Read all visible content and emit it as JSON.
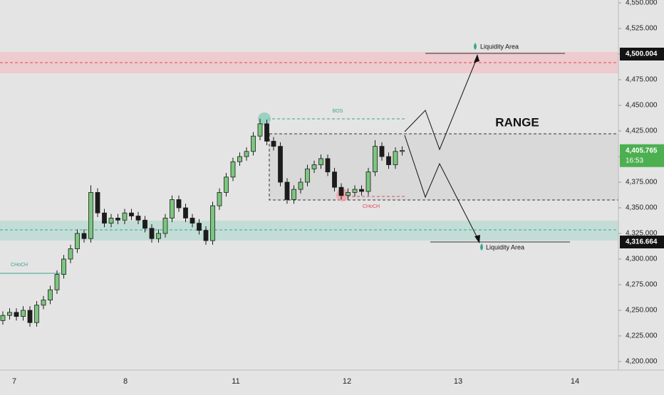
{
  "chart_data": {
    "type": "candlestick",
    "open": [
      4240,
      4245,
      4248,
      4244,
      4250,
      4238,
      4255,
      4260,
      4270,
      4285,
      4300,
      4310,
      4325,
      4320,
      4365,
      4345,
      4335,
      4340,
      4338,
      4345,
      4342,
      4338,
      4330,
      4320,
      4325,
      4340,
      4358,
      4350,
      4340,
      4335,
      4328,
      4318,
      4352,
      4365,
      4380,
      4395,
      4400,
      4405,
      4420,
      4432,
      4415,
      4410,
      4375,
      4358,
      4368,
      4375,
      4388,
      4392,
      4398,
      4385,
      4370,
      4362,
      4365,
      4368,
      4366,
      4385,
      4410,
      4400,
      4392,
      4405
    ],
    "high": [
      4249,
      4252,
      4252,
      4254,
      4254,
      4259,
      4264,
      4274,
      4289,
      4304,
      4314,
      4329,
      4329,
      4372,
      4369,
      4349,
      4344,
      4344,
      4349,
      4349,
      4346,
      4342,
      4334,
      4329,
      4344,
      4362,
      4362,
      4354,
      4344,
      4339,
      4332,
      4356,
      4369,
      4384,
      4399,
      4404,
      4409,
      4424,
      4437,
      4436,
      4419,
      4414,
      4379,
      4372,
      4379,
      4392,
      4396,
      4402,
      4402,
      4389,
      4374,
      4369,
      4372,
      4372,
      4389,
      4416,
      4414,
      4404,
      4409,
      4410
    ],
    "low": [
      4236,
      4241,
      4240,
      4240,
      4234,
      4234,
      4251,
      4256,
      4266,
      4281,
      4296,
      4306,
      4316,
      4316,
      4341,
      4331,
      4331,
      4334,
      4334,
      4338,
      4334,
      4326,
      4316,
      4316,
      4321,
      4336,
      4346,
      4336,
      4331,
      4324,
      4314,
      4314,
      4348,
      4361,
      4376,
      4391,
      4396,
      4401,
      4416,
      4411,
      4406,
      4371,
      4354,
      4354,
      4364,
      4371,
      4384,
      4388,
      4381,
      4366,
      4358,
      4358,
      4361,
      4362,
      4362,
      4381,
      4396,
      4388,
      4388,
      4401
    ],
    "close": [
      4245,
      4248,
      4244,
      4250,
      4238,
      4255,
      4260,
      4270,
      4285,
      4300,
      4310,
      4325,
      4320,
      4365,
      4345,
      4335,
      4340,
      4338,
      4345,
      4342,
      4338,
      4330,
      4320,
      4325,
      4340,
      4358,
      4350,
      4340,
      4335,
      4328,
      4318,
      4352,
      4365,
      4380,
      4395,
      4400,
      4405,
      4420,
      4432,
      4415,
      4410,
      4375,
      4358,
      4368,
      4375,
      4388,
      4392,
      4398,
      4385,
      4370,
      4362,
      4365,
      4368,
      4366,
      4385,
      4410,
      4400,
      4392,
      4405,
      4406
    ],
    "up_color": "#7cc67f",
    "down_color": "#1c1c1c",
    "ylim": [
      4200,
      4550
    ],
    "yticks": [
      {
        "value": 4550,
        "label": "4,550.000"
      },
      {
        "value": 4525,
        "label": "4,525.000"
      },
      {
        "value": 4500,
        "label": "4,500.000"
      },
      {
        "value": 4475,
        "label": "4,475.000"
      },
      {
        "value": 4450,
        "label": "4,450.000"
      },
      {
        "value": 4425,
        "label": "4,425.000"
      },
      {
        "value": 4400,
        "label": "4,400.000"
      },
      {
        "value": 4375,
        "label": "4,375.000"
      },
      {
        "value": 4350,
        "label": "4,350.000"
      },
      {
        "value": 4325,
        "label": "4,325.000"
      },
      {
        "value": 4300,
        "label": "4,300.000"
      },
      {
        "value": 4275,
        "label": "4,275.000"
      },
      {
        "value": 4250,
        "label": "4,250.000"
      },
      {
        "value": 4225,
        "label": "4,225.000"
      },
      {
        "value": 4200,
        "label": "4,200.000"
      }
    ],
    "x_labels": [
      "7",
      "8",
      "11",
      "12",
      "13",
      "14"
    ],
    "price_labels": [
      {
        "value": 4500.004,
        "label": "4,500.004"
      },
      {
        "value": 4405.765,
        "label": "4,405.765",
        "countdown": "16:53"
      },
      {
        "value": 4316.664,
        "label": "4,316.664"
      }
    ],
    "annotations": {
      "range": "RANGE",
      "bos": "BOS",
      "choch_top": "CHoCH",
      "choch_left": "CHoCH",
      "liquidity_top": "Liquidity Area",
      "liquidity_bottom": "Liquidity Area"
    }
  }
}
